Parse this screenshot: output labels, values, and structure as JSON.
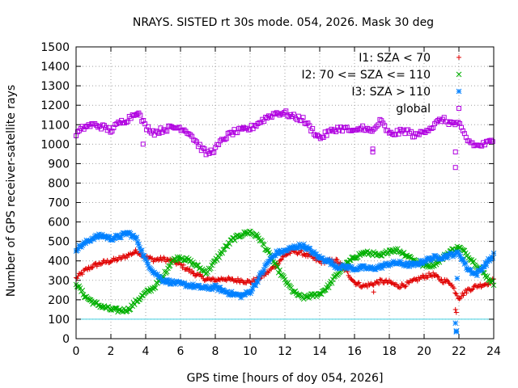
{
  "chart_data": {
    "type": "scatter",
    "title": "NRAYS. SISTED rt 30s mode. 054, 2026. Mask 30 deg",
    "xlabel": "GPS time [hours of doy 054, 2026]",
    "ylabel": "Number of GPS receiver-satellite rays",
    "xlim": [
      0,
      24
    ],
    "ylim": [
      0,
      1500
    ],
    "xticks": [
      0,
      2,
      4,
      6,
      8,
      10,
      12,
      14,
      16,
      18,
      20,
      22,
      24
    ],
    "yticks": [
      0,
      100,
      200,
      300,
      400,
      500,
      600,
      700,
      800,
      900,
      1000,
      1100,
      1200,
      1300,
      1400,
      1500
    ],
    "grid": true,
    "legend_position": "top-right",
    "reference_line": {
      "y": 100,
      "color": "#40d0e0"
    },
    "series": [
      {
        "name": "I1: SZA < 70",
        "marker": "+",
        "color": "#e00000",
        "x": [
          0,
          0.5,
          1,
          1.5,
          2,
          2.5,
          3,
          3.5,
          4,
          4.5,
          5,
          5.5,
          6,
          6.5,
          7,
          7.5,
          8,
          8.5,
          9,
          9.5,
          10,
          10.5,
          11,
          11.5,
          12,
          12.5,
          13,
          13.5,
          14,
          14.5,
          15,
          15.5,
          16,
          16.5,
          17,
          17.5,
          18,
          18.5,
          19,
          19.5,
          20,
          20.5,
          21,
          21.5,
          22,
          22.5,
          23,
          23.5,
          24
        ],
        "y": [
          310,
          350,
          375,
          390,
          400,
          410,
          430,
          450,
          420,
          405,
          410,
          400,
          380,
          350,
          325,
          305,
          300,
          310,
          300,
          300,
          290,
          310,
          340,
          380,
          430,
          450,
          440,
          420,
          395,
          400,
          400,
          350,
          290,
          270,
          280,
          295,
          290,
          270,
          280,
          300,
          320,
          330,
          300,
          290,
          210,
          250,
          270,
          280,
          300
        ]
      },
      {
        "name": "I2: 70 <= SZA <= 110",
        "marker": "x",
        "color": "#00b000",
        "x": [
          0,
          0.5,
          1,
          1.5,
          2,
          2.5,
          3,
          3.5,
          4,
          4.5,
          5,
          5.5,
          6,
          6.5,
          7,
          7.5,
          8,
          8.5,
          9,
          9.5,
          10,
          10.5,
          11,
          11.5,
          12,
          12.5,
          13,
          13.5,
          14,
          14.5,
          15,
          15.5,
          16,
          16.5,
          17,
          17.5,
          18,
          18.5,
          19,
          19.5,
          20,
          20.5,
          21,
          21.5,
          22,
          22.5,
          23,
          23.5,
          24
        ],
        "y": [
          285,
          220,
          185,
          165,
          150,
          145,
          150,
          195,
          235,
          265,
          320,
          400,
          420,
          400,
          370,
          340,
          400,
          460,
          510,
          535,
          550,
          520,
          450,
          370,
          300,
          240,
          210,
          220,
          230,
          270,
          330,
          380,
          420,
          440,
          440,
          420,
          455,
          455,
          430,
          400,
          375,
          380,
          410,
          450,
          470,
          430,
          380,
          330,
          280
        ]
      },
      {
        "name": "I3: SZA > 110",
        "marker": "*",
        "color": "#0080ff",
        "x": [
          0,
          0.5,
          1,
          1.5,
          2,
          2.5,
          3,
          3.5,
          4,
          4.5,
          5,
          5.5,
          6,
          6.5,
          7,
          7.5,
          8,
          8.5,
          9,
          9.5,
          10,
          10.5,
          11,
          11.5,
          12,
          12.5,
          13,
          13.5,
          14,
          14.5,
          15,
          15.5,
          16,
          16.5,
          17,
          17.5,
          18,
          18.5,
          19,
          19.5,
          20,
          20.5,
          21,
          21.5,
          22,
          22.5,
          23,
          23.5,
          24
        ],
        "y": [
          460,
          490,
          520,
          530,
          515,
          525,
          545,
          510,
          400,
          340,
          300,
          290,
          280,
          275,
          265,
          260,
          265,
          245,
          230,
          220,
          240,
          310,
          390,
          440,
          450,
          470,
          480,
          450,
          415,
          400,
          370,
          370,
          360,
          365,
          360,
          370,
          385,
          390,
          380,
          380,
          400,
          415,
          420,
          430,
          440,
          360,
          330,
          380,
          430
        ]
      },
      {
        "name": "global",
        "marker": "square",
        "color": "#b000e0",
        "x": [
          0,
          0.5,
          1,
          1.5,
          2,
          2.5,
          3,
          3.5,
          4,
          4.5,
          5,
          5.5,
          6,
          6.5,
          7,
          7.5,
          8,
          8.5,
          9,
          9.5,
          10,
          10.5,
          11,
          11.5,
          12,
          12.5,
          13,
          13.5,
          14,
          14.5,
          15,
          15.5,
          16,
          16.5,
          17,
          17.5,
          18,
          18.5,
          19,
          19.5,
          20,
          20.5,
          21,
          21.5,
          22,
          22.5,
          23,
          23.5,
          24
        ],
        "y": [
          1050,
          1090,
          1100,
          1090,
          1070,
          1110,
          1130,
          1170,
          1090,
          1060,
          1075,
          1085,
          1085,
          1060,
          1000,
          950,
          975,
          1030,
          1060,
          1070,
          1080,
          1110,
          1140,
          1160,
          1160,
          1140,
          1130,
          1080,
          1030,
          1060,
          1080,
          1080,
          1060,
          1090,
          1060,
          1120,
          1050,
          1060,
          1070,
          1040,
          1070,
          1090,
          1130,
          1110,
          1100,
          1020,
          990,
          1000,
          1020
        ]
      }
    ],
    "outliers": [
      {
        "series": "global",
        "x": [
          3.85,
          17.05,
          17.05,
          21.8,
          21.8
        ],
        "y": [
          1000,
          960,
          975,
          880,
          960
        ]
      },
      {
        "series": "I3: SZA > 110",
        "x": [
          21.8,
          21.85,
          21.85,
          21.9
        ],
        "y": [
          80,
          40,
          35,
          310
        ]
      },
      {
        "series": "I1: SZA < 70",
        "x": [
          21.8,
          21.85,
          17.1
        ],
        "y": [
          150,
          135,
          240
        ]
      }
    ]
  }
}
